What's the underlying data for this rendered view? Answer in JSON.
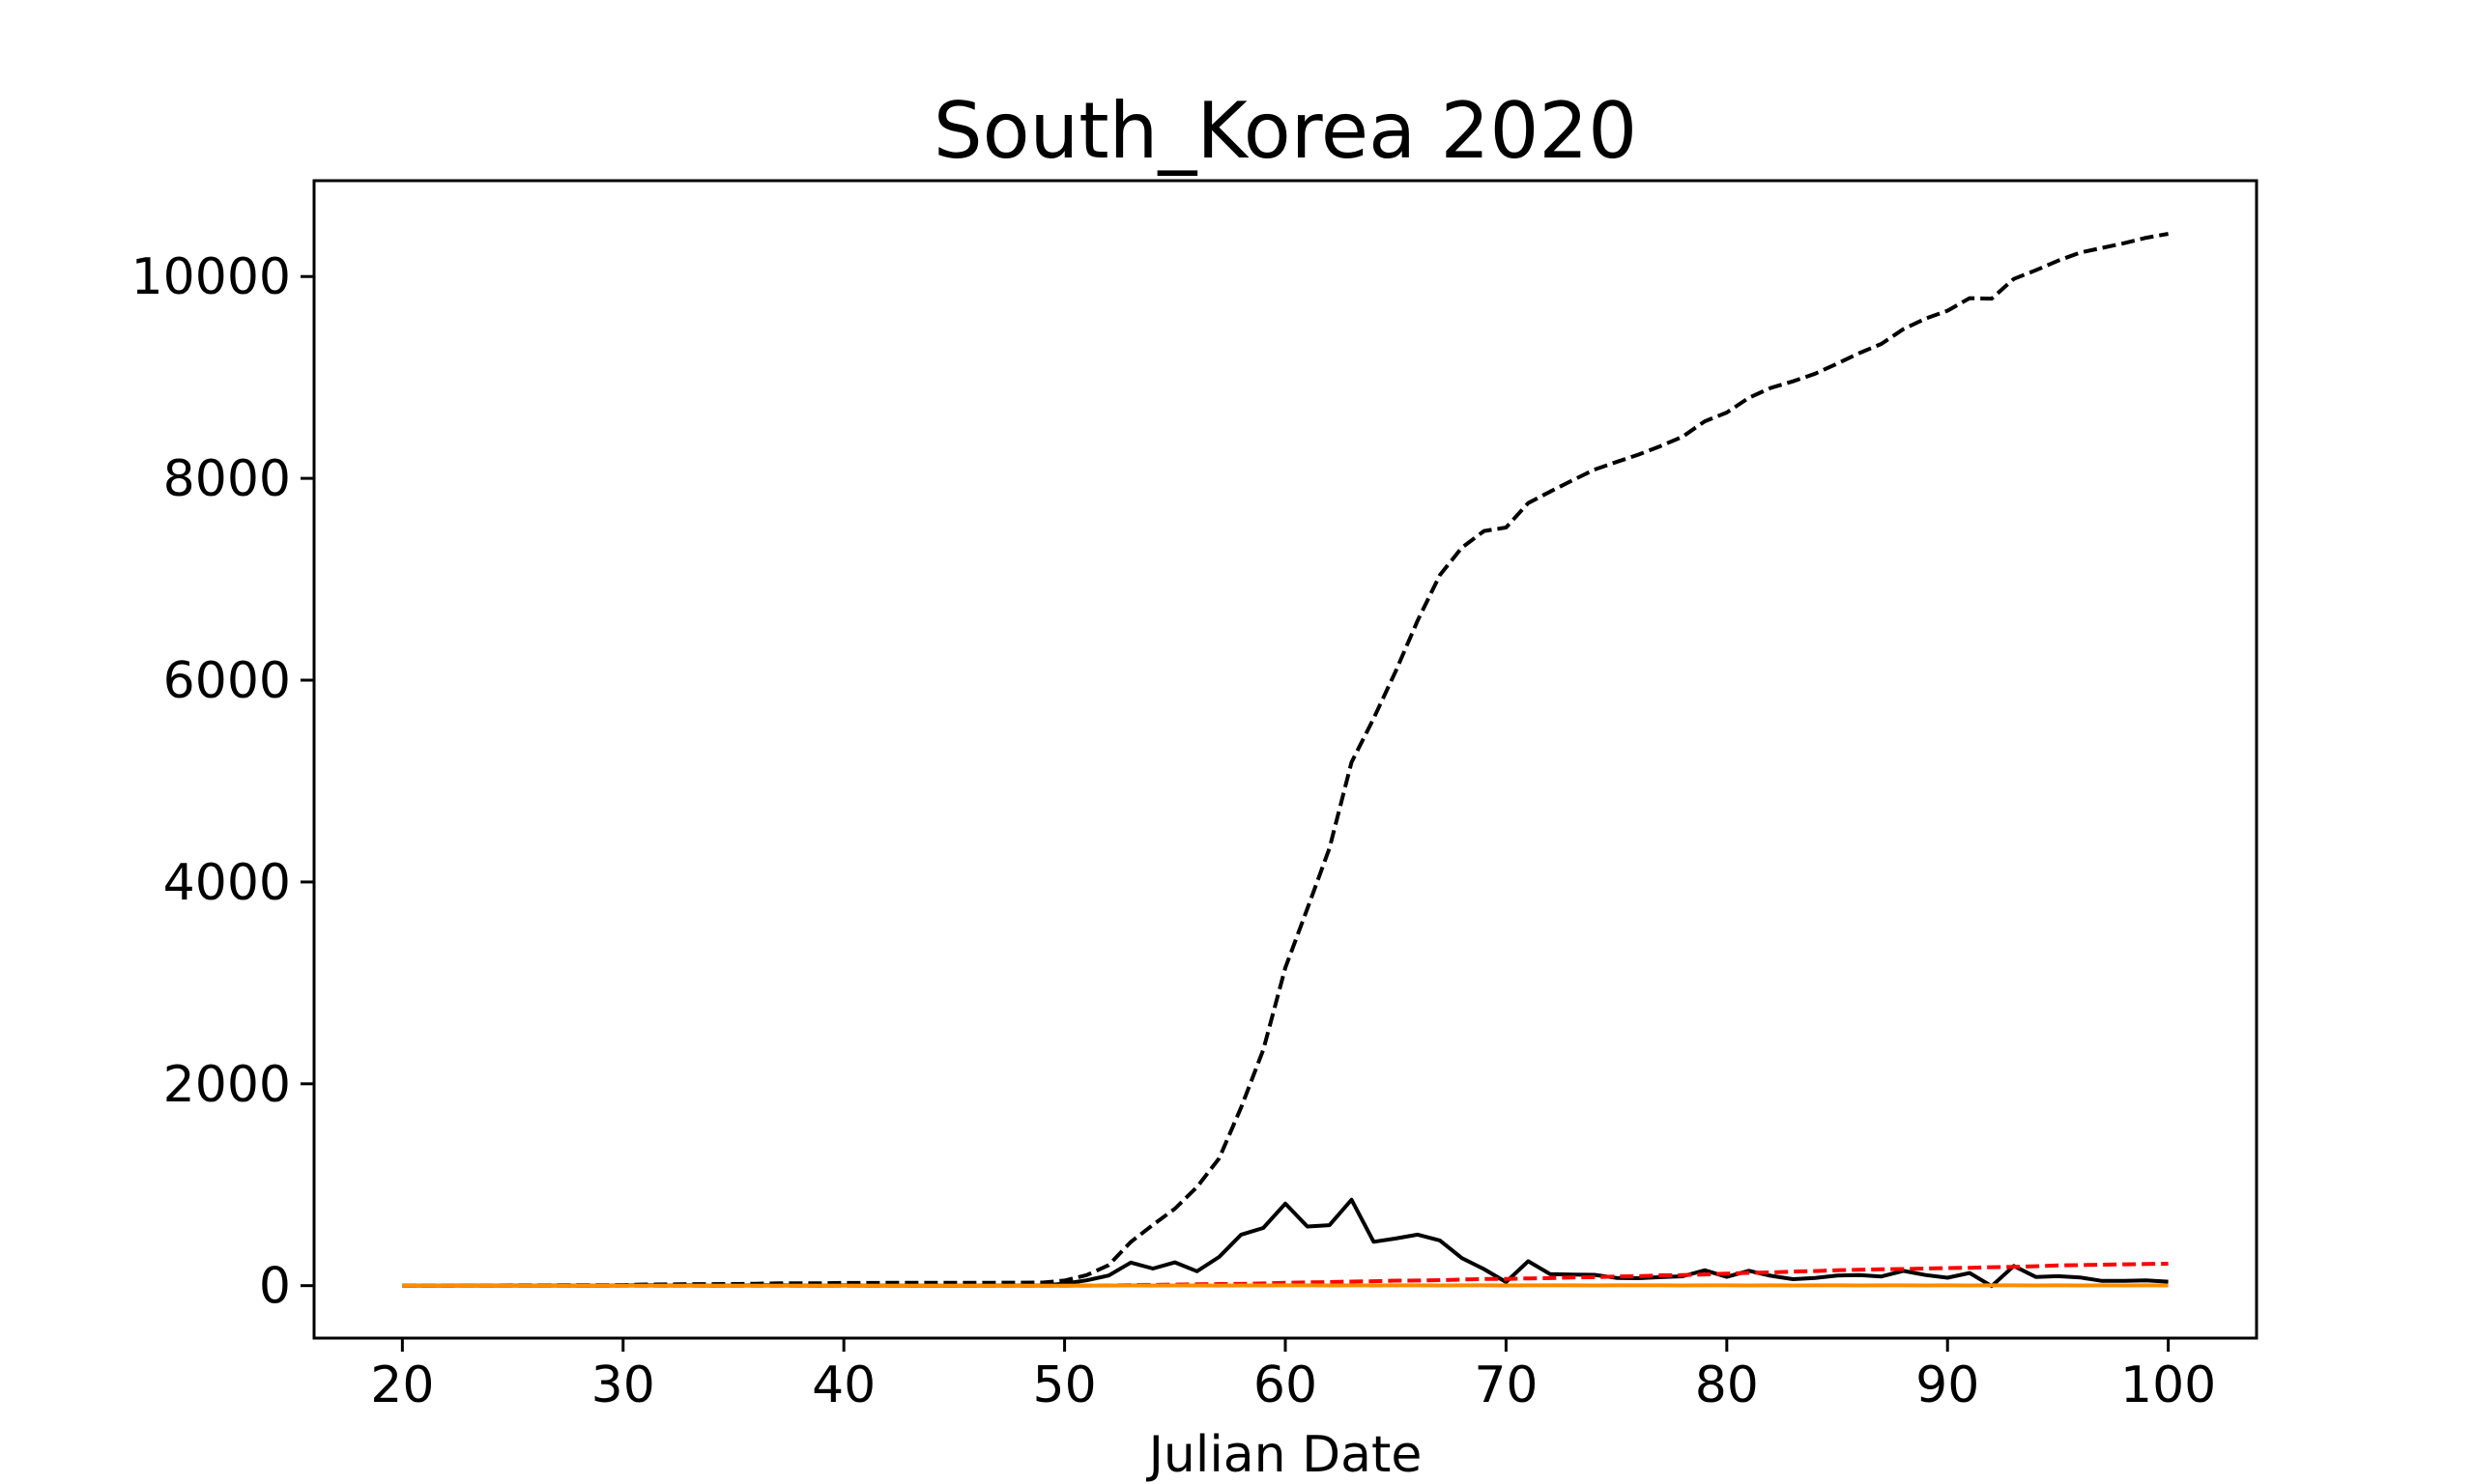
{
  "chart_data": {
    "type": "line",
    "title": "South_Korea 2020",
    "xlabel": "Julian Date",
    "ylabel": "",
    "xlim": [
      16,
      104
    ],
    "ylim": [
      -520,
      10950
    ],
    "xticks": [
      20,
      30,
      40,
      50,
      60,
      70,
      80,
      90,
      100
    ],
    "yticks": [
      0,
      2000,
      4000,
      6000,
      8000,
      10000
    ],
    "grid": false,
    "legend": "none",
    "x": [
      20,
      21,
      22,
      23,
      24,
      25,
      26,
      27,
      28,
      29,
      30,
      31,
      32,
      33,
      34,
      35,
      36,
      37,
      38,
      39,
      40,
      41,
      42,
      43,
      44,
      45,
      46,
      47,
      48,
      49,
      50,
      51,
      52,
      53,
      54,
      55,
      56,
      57,
      58,
      59,
      60,
      61,
      62,
      63,
      64,
      65,
      66,
      67,
      68,
      69,
      70,
      71,
      72,
      73,
      74,
      75,
      76,
      77,
      78,
      79,
      80,
      81,
      82,
      83,
      84,
      85,
      86,
      87,
      88,
      89,
      90,
      91,
      92,
      93,
      94,
      95,
      96,
      97,
      98,
      99,
      100
    ],
    "series": [
      {
        "style": "dashed",
        "color": "#000000",
        "values": [
          1,
          1,
          1,
          2,
          2,
          3,
          3,
          4,
          4,
          4,
          6,
          11,
          12,
          15,
          15,
          16,
          19,
          23,
          24,
          24,
          27,
          27,
          28,
          28,
          28,
          28,
          28,
          29,
          30,
          31,
          51,
          104,
          204,
          433,
          602,
          763,
          977,
          1261,
          1766,
          2337,
          3150,
          3736,
          4335,
          5186,
          5621,
          6088,
          6593,
          7041,
          7314,
          7478,
          7513,
          7755,
          7869,
          7979,
          8086,
          8162,
          8236,
          8320,
          8413,
          8565,
          8652,
          8799,
          8897,
          8961,
          9037,
          9137,
          9241,
          9332,
          9478,
          9583,
          9661,
          9786,
          9781,
          9976,
          10062,
          10156,
          10237,
          10284,
          10331,
          10384,
          10423
        ]
      },
      {
        "style": "solid",
        "color": "#000000",
        "values": [
          0,
          0,
          0,
          1,
          0,
          1,
          0,
          1,
          0,
          0,
          2,
          5,
          1,
          3,
          0,
          1,
          3,
          4,
          1,
          0,
          3,
          0,
          1,
          0,
          0,
          0,
          0,
          1,
          1,
          1,
          20,
          53,
          100,
          229,
          169,
          231,
          143,
          284,
          505,
          571,
          813,
          586,
          599,
          851,
          435,
          467,
          505,
          448,
          273,
          164,
          35,
          242,
          114,
          110,
          107,
          76,
          74,
          84,
          93,
          152,
          87,
          147,
          98,
          64,
          76,
          100,
          104,
          91,
          146,
          105,
          78,
          125,
          -5,
          195,
          86,
          94,
          81,
          47,
          47,
          53,
          39
        ]
      },
      {
        "style": "dashed",
        "color": "#ff0000",
        "values": [
          0,
          0,
          0,
          0,
          0,
          0,
          0,
          0,
          0,
          0,
          0,
          0,
          0,
          0,
          0,
          0,
          0,
          0,
          0,
          0,
          0,
          0,
          0,
          0,
          0,
          0,
          0,
          0,
          0,
          0,
          0,
          1,
          2,
          6,
          8,
          10,
          13,
          16,
          17,
          22,
          28,
          32,
          35,
          40,
          44,
          50,
          51,
          54,
          60,
          66,
          67,
          72,
          75,
          81,
          84,
          91,
          94,
          102,
          104,
          111,
          120,
          126,
          131,
          139,
          144,
          152,
          158,
          162,
          165,
          169,
          174,
          177,
          183,
          186,
          192,
          200,
          204,
          208,
          211,
          214,
          217
        ]
      },
      {
        "style": "solid",
        "color": "#ff8c00",
        "values": [
          0,
          0,
          0,
          0,
          0,
          0,
          0,
          0,
          0,
          0,
          0,
          0,
          0,
          0,
          0,
          0,
          0,
          0,
          0,
          0,
          0,
          0,
          0,
          0,
          0,
          0,
          0,
          0,
          0,
          0,
          0,
          1,
          1,
          2,
          1,
          2,
          2,
          1,
          2,
          2,
          3,
          3,
          2,
          3,
          2,
          3,
          3,
          2,
          3,
          3,
          2,
          3,
          3,
          3,
          2,
          3,
          3,
          3,
          2,
          3,
          3,
          2,
          3,
          2,
          3,
          3,
          2,
          3,
          3,
          2,
          3,
          2,
          3,
          3,
          2,
          3,
          2,
          3,
          2,
          3,
          2
        ]
      }
    ]
  }
}
